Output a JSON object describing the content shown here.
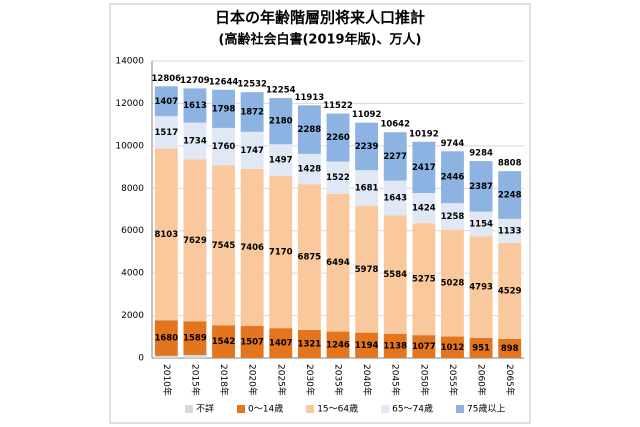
{
  "chart_data": {
    "type": "bar",
    "stacked": true,
    "title": "日本の年齢階層別将来人口推計",
    "subtitle": "(高齢社会白書(2019年版)、万人)",
    "categories": [
      "2010年",
      "2015年",
      "2018年",
      "2020年",
      "2025年",
      "2030年",
      "2035年",
      "2040年",
      "2045年",
      "2050年",
      "2055年",
      "2060年",
      "2065年"
    ],
    "series": [
      {
        "name": "不詳",
        "color": "#d9d9d9",
        "values": [
          99,
          144,
          0,
          0,
          0,
          0,
          0,
          0,
          0,
          0,
          0,
          0,
          0
        ]
      },
      {
        "name": "0～14歳",
        "color": "#e3751f",
        "values": [
          1680,
          1589,
          1542,
          1507,
          1407,
          1321,
          1246,
          1194,
          1138,
          1077,
          1012,
          951,
          898
        ]
      },
      {
        "name": "15～64歳",
        "color": "#f9c99d",
        "values": [
          8103,
          7629,
          7545,
          7406,
          7170,
          6875,
          6494,
          5978,
          5584,
          5275,
          5028,
          4793,
          4529
        ]
      },
      {
        "name": "65～74歳",
        "color": "#dfe8f4",
        "values": [
          1517,
          1734,
          1760,
          1747,
          1497,
          1428,
          1522,
          1681,
          1643,
          1424,
          1258,
          1154,
          1133
        ]
      },
      {
        "name": "75歳以上",
        "color": "#8db3e2",
        "values": [
          1407,
          1613,
          1798,
          1872,
          2180,
          2288,
          2260,
          2239,
          2277,
          2417,
          2446,
          2387,
          2248
        ]
      }
    ],
    "totals": [
      12806,
      12709,
      12644,
      12532,
      12254,
      11913,
      11522,
      11092,
      10642,
      10192,
      9744,
      9284,
      8808
    ],
    "totals_color": "#953735",
    "ylim": [
      0,
      14000
    ],
    "yticks": [
      0,
      2000,
      4000,
      6000,
      8000,
      10000,
      12000,
      14000
    ],
    "grid": true,
    "legend": "bottom"
  }
}
